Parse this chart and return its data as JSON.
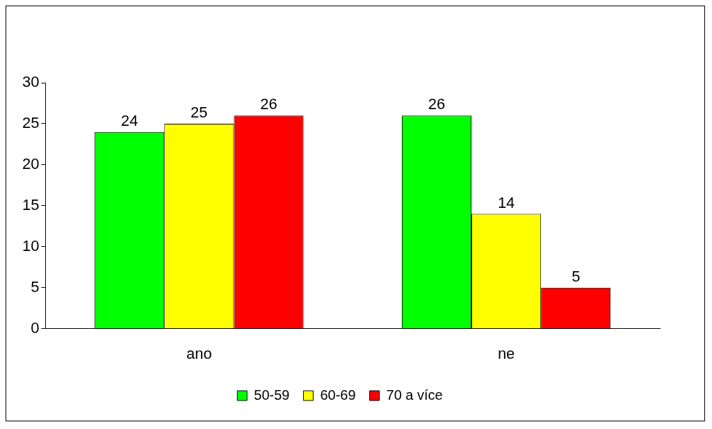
{
  "chart_data": {
    "type": "bar",
    "categories": [
      "ano",
      "ne"
    ],
    "series": [
      {
        "name": "50-59",
        "color": "#00ff00",
        "values": [
          24,
          26
        ]
      },
      {
        "name": "60-69",
        "color": "#ffff00",
        "values": [
          25,
          14
        ]
      },
      {
        "name": "70 a více",
        "color": "#ff0000",
        "values": [
          26,
          5
        ]
      }
    ],
    "ylim": [
      0,
      30
    ],
    "yticks": [
      0,
      5,
      10,
      15,
      20,
      25,
      30
    ],
    "grid": false,
    "legend": "bottom",
    "data_labels": true
  }
}
